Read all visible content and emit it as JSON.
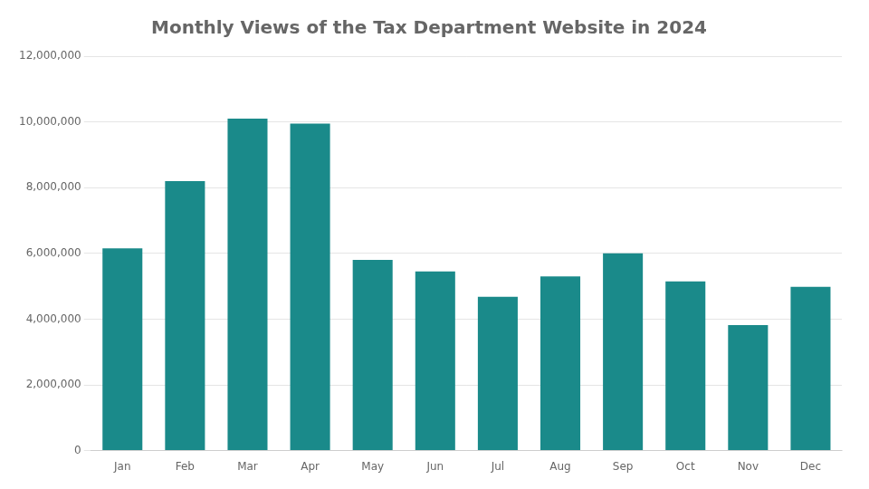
{
  "chart_data": {
    "type": "bar",
    "title": "Monthly Views of the Tax Department Website in 2024",
    "categories": [
      "Jan",
      "Feb",
      "Mar",
      "Apr",
      "May",
      "Jun",
      "Jul",
      "Aug",
      "Sep",
      "Oct",
      "Nov",
      "Dec"
    ],
    "values": [
      6150000,
      8200000,
      10100000,
      9950000,
      5800000,
      5450000,
      4680000,
      5300000,
      6000000,
      5150000,
      3820000,
      4980000
    ],
    "color": "#1a8a8a",
    "ylim": [
      0,
      12000000
    ],
    "yticks": [
      0,
      {
        "value": 2000000,
        "label": "2,000,000"
      },
      {
        "value": 4000000,
        "label": "4,000,000"
      },
      {
        "value": 6000000,
        "label": "6,000,000"
      },
      {
        "value": 8000000,
        "label": "8,000,000"
      },
      {
        "value": 10000000,
        "label": "10,000,000"
      },
      {
        "value": 12000000,
        "label": "12,000,000"
      }
    ],
    "grid": true
  }
}
